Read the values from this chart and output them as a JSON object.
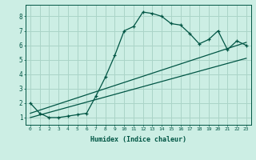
{
  "xlabel": "Humidex (Indice chaleur)",
  "ylabel": "",
  "bg_color": "#cceee4",
  "grid_color": "#aad4c8",
  "line_color": "#005544",
  "xlim": [
    -0.5,
    23.5
  ],
  "ylim": [
    0.5,
    8.8
  ],
  "xticks": [
    0,
    1,
    2,
    3,
    4,
    5,
    6,
    7,
    8,
    9,
    10,
    11,
    12,
    13,
    14,
    15,
    16,
    17,
    18,
    19,
    20,
    21,
    22,
    23
  ],
  "yticks": [
    1,
    2,
    3,
    4,
    5,
    6,
    7,
    8
  ],
  "main_x": [
    0,
    1,
    2,
    3,
    4,
    5,
    6,
    7,
    8,
    9,
    10,
    11,
    12,
    13,
    14,
    15,
    16,
    17,
    18,
    19,
    20,
    21,
    22,
    23
  ],
  "main_y": [
    2.0,
    1.3,
    1.0,
    1.0,
    1.1,
    1.2,
    1.3,
    2.5,
    3.8,
    5.3,
    7.0,
    7.3,
    8.3,
    8.2,
    8.0,
    7.5,
    7.4,
    6.8,
    6.1,
    6.4,
    7.0,
    5.7,
    6.3,
    6.0
  ],
  "line1_x": [
    0,
    23
  ],
  "line1_y": [
    1.0,
    5.1
  ],
  "line2_x": [
    0,
    23
  ],
  "line2_y": [
    1.3,
    6.2
  ]
}
